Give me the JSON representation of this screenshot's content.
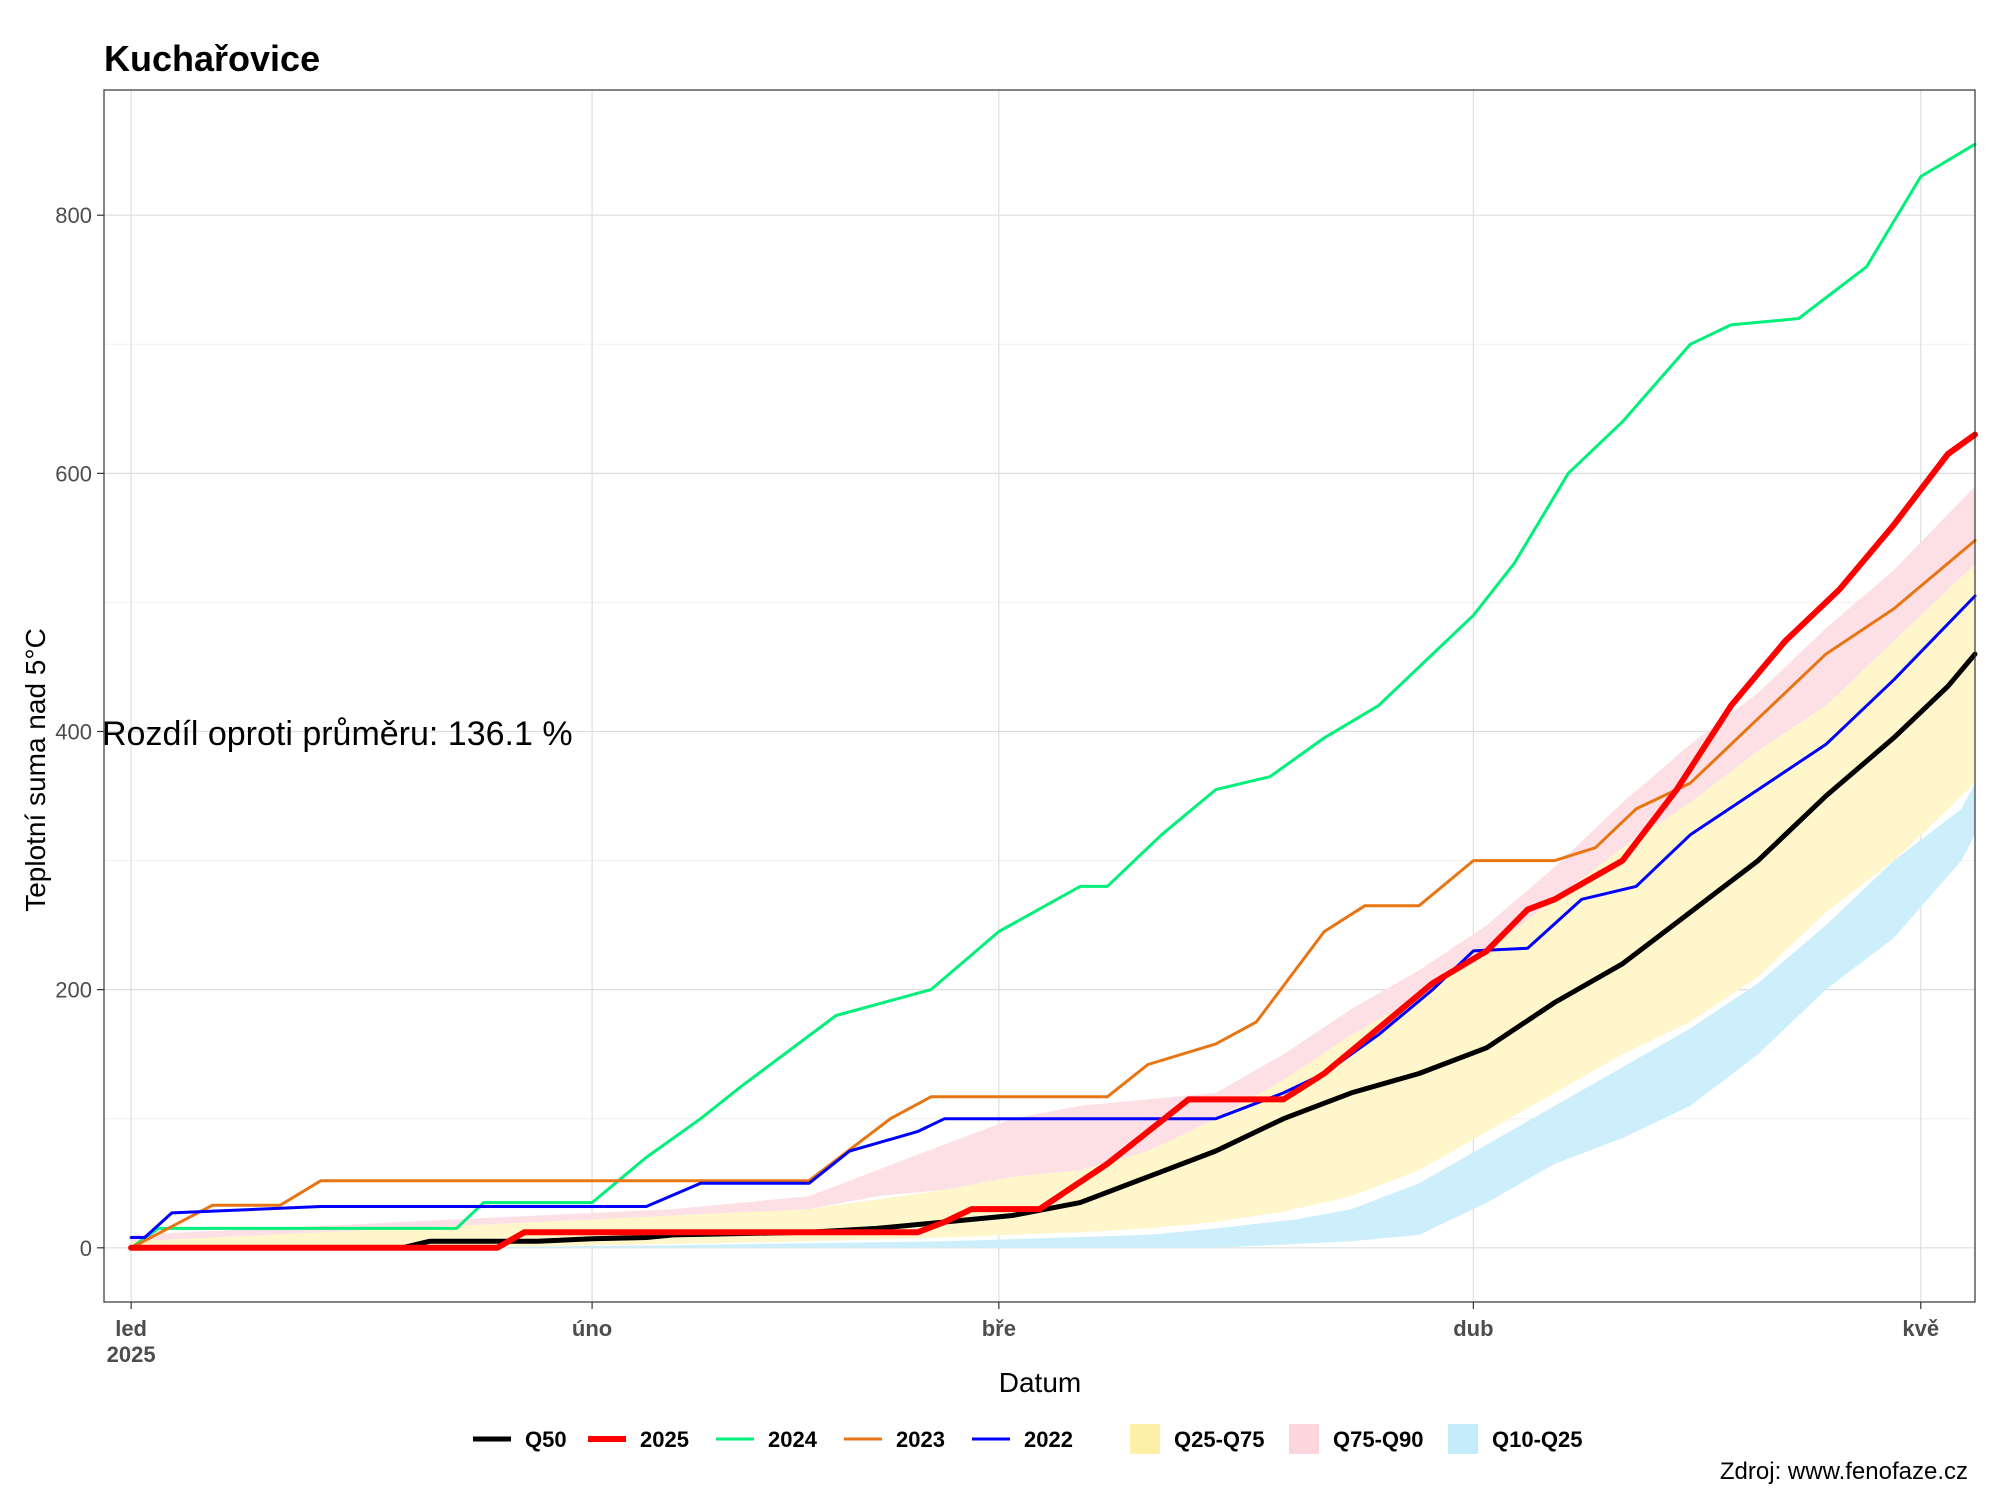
{
  "chart_data": {
    "type": "line",
    "title": "Kuchařovice",
    "xlabel": "Datum",
    "ylabel": "Teplotní suma nad 5°C",
    "caption": "Zdroj: www.fenofaze.cz",
    "annotation": "Rozdíl oproti průměru: 136.1 %",
    "xlim_days": [
      -2,
      136
    ],
    "ylim": [
      -42,
      897
    ],
    "y_ticks": [
      0,
      200,
      400,
      600,
      800
    ],
    "x_ticks": [
      {
        "day": 0,
        "label": "led",
        "sublabel": "2025"
      },
      {
        "day": 34,
        "label": "úno",
        "sublabel": ""
      },
      {
        "day": 64,
        "label": "bře",
        "sublabel": ""
      },
      {
        "day": 99,
        "label": "dub",
        "sublabel": ""
      },
      {
        "day": 132,
        "label": "kvě",
        "sublabel": ""
      }
    ],
    "x_unit": "days since 2025-01-01",
    "bands": [
      {
        "name": "Q10-Q25",
        "color": "#cdeffc",
        "x": [
          0,
          20,
          40,
          60,
          75,
          80,
          86,
          90,
          95,
          100,
          105,
          110,
          115,
          120,
          125,
          130,
          135,
          136
        ],
        "lower": [
          0,
          0,
          0,
          0,
          0,
          0,
          3,
          5,
          10,
          35,
          65,
          85,
          110,
          150,
          200,
          240,
          300,
          320
        ],
        "upper": [
          0,
          0,
          2,
          5,
          10,
          15,
          22,
          30,
          50,
          80,
          110,
          140,
          170,
          205,
          250,
          300,
          340,
          360
        ]
      },
      {
        "name": "Q25-Q75",
        "color": "#fff6cc",
        "x": [
          0,
          10,
          20,
          30,
          40,
          50,
          60,
          65,
          70,
          75,
          80,
          85,
          90,
          95,
          100,
          105,
          110,
          115,
          120,
          125,
          130,
          136
        ],
        "lower": [
          0,
          0,
          0,
          1,
          3,
          5,
          8,
          10,
          12,
          15,
          20,
          28,
          40,
          60,
          90,
          120,
          150,
          175,
          210,
          260,
          300,
          360
        ],
        "upper": [
          5,
          10,
          15,
          20,
          25,
          30,
          45,
          55,
          60,
          75,
          100,
          130,
          165,
          195,
          230,
          270,
          310,
          345,
          385,
          420,
          470,
          530
        ]
      },
      {
        "name": "Q75-Q90",
        "color": "#fde0e5",
        "x": [
          0,
          10,
          20,
          30,
          40,
          50,
          55,
          60,
          65,
          70,
          75,
          80,
          85,
          90,
          95,
          100,
          105,
          110,
          115,
          120,
          125,
          130,
          136
        ],
        "lower": [
          5,
          10,
          15,
          20,
          25,
          30,
          40,
          45,
          55,
          60,
          75,
          100,
          130,
          165,
          195,
          230,
          270,
          310,
          345,
          385,
          420,
          470,
          530
        ],
        "upper": [
          10,
          15,
          20,
          25,
          30,
          40,
          60,
          80,
          100,
          110,
          115,
          120,
          150,
          185,
          215,
          250,
          295,
          345,
          390,
          430,
          480,
          525,
          590
        ]
      }
    ],
    "series": [
      {
        "name": "Q50",
        "color": "#000000",
        "width": 5,
        "x": [
          0,
          20,
          22,
          30,
          34,
          38,
          40,
          50,
          55,
          60,
          65,
          70,
          75,
          80,
          85,
          90,
          95,
          100,
          105,
          110,
          115,
          120,
          125,
          130,
          134,
          136
        ],
        "y": [
          0,
          0,
          5,
          5,
          7,
          8,
          10,
          12,
          15,
          20,
          25,
          35,
          55,
          75,
          100,
          120,
          135,
          155,
          190,
          220,
          260,
          300,
          350,
          395,
          435,
          460
        ]
      },
      {
        "name": "2025",
        "color": "#ff0000",
        "width": 6,
        "x": [
          0,
          27,
          29,
          40,
          58,
          60,
          62,
          67,
          72,
          78,
          85,
          88,
          92,
          96,
          100,
          103,
          105,
          110,
          114,
          118,
          122,
          126,
          130,
          134,
          136
        ],
        "y": [
          0,
          0,
          12,
          12,
          12,
          20,
          30,
          30,
          65,
          115,
          115,
          135,
          170,
          205,
          230,
          262,
          270,
          300,
          355,
          420,
          470,
          510,
          560,
          615,
          630
        ]
      },
      {
        "name": "2024",
        "color": "#00f07a",
        "width": 3,
        "x": [
          0,
          2,
          24,
          26,
          34,
          38,
          42,
          45,
          52,
          59,
          64,
          70,
          72,
          76,
          80,
          84,
          88,
          92,
          95,
          99,
          102,
          106,
          110,
          115,
          118,
          123,
          128,
          132,
          136
        ],
        "y": [
          0,
          15,
          15,
          35,
          35,
          70,
          100,
          125,
          180,
          200,
          245,
          280,
          280,
          320,
          355,
          365,
          395,
          420,
          450,
          490,
          530,
          600,
          640,
          700,
          715,
          720,
          760,
          830,
          855
        ]
      },
      {
        "name": "2023",
        "color": "#e87513",
        "width": 3,
        "x": [
          0,
          6,
          11,
          14,
          50,
          56,
          59,
          72,
          75,
          80,
          83,
          88,
          91,
          95,
          99,
          102,
          105,
          108,
          111,
          115,
          120,
          125,
          130,
          136
        ],
        "y": [
          0,
          33,
          33,
          52,
          52,
          100,
          117,
          117,
          142,
          158,
          175,
          245,
          265,
          265,
          300,
          300,
          300,
          310,
          340,
          360,
          410,
          460,
          495,
          548
        ]
      },
      {
        "name": "2022",
        "color": "#0000ff",
        "width": 3,
        "x": [
          0,
          1,
          3,
          14,
          38,
          42,
          50,
          53,
          58,
          60,
          80,
          85,
          88,
          92,
          96,
          99,
          103,
          107,
          111,
          115,
          120,
          125,
          130,
          136
        ],
        "y": [
          8,
          8,
          27,
          32,
          32,
          50,
          50,
          75,
          90,
          100,
          100,
          120,
          135,
          165,
          200,
          230,
          232,
          270,
          280,
          320,
          355,
          390,
          440,
          505
        ]
      }
    ],
    "legend": {
      "position": "bottom",
      "items": [
        {
          "label": "Q50",
          "kind": "line",
          "color": "#000000",
          "width": 5
        },
        {
          "label": "2025",
          "kind": "line",
          "color": "#ff0000",
          "width": 6
        },
        {
          "label": "2024",
          "kind": "line",
          "color": "#00f07a",
          "width": 3
        },
        {
          "label": "2023",
          "kind": "line",
          "color": "#e87513",
          "width": 3
        },
        {
          "label": "2022",
          "kind": "line",
          "color": "#0000ff",
          "width": 3
        },
        {
          "label": "Q25-Q75",
          "kind": "fill",
          "color": "#fff0a8"
        },
        {
          "label": "Q75-Q90",
          "kind": "fill",
          "color": "#fdd5dc"
        },
        {
          "label": "Q10-Q25",
          "kind": "fill",
          "color": "#c5ecfb"
        }
      ]
    }
  }
}
